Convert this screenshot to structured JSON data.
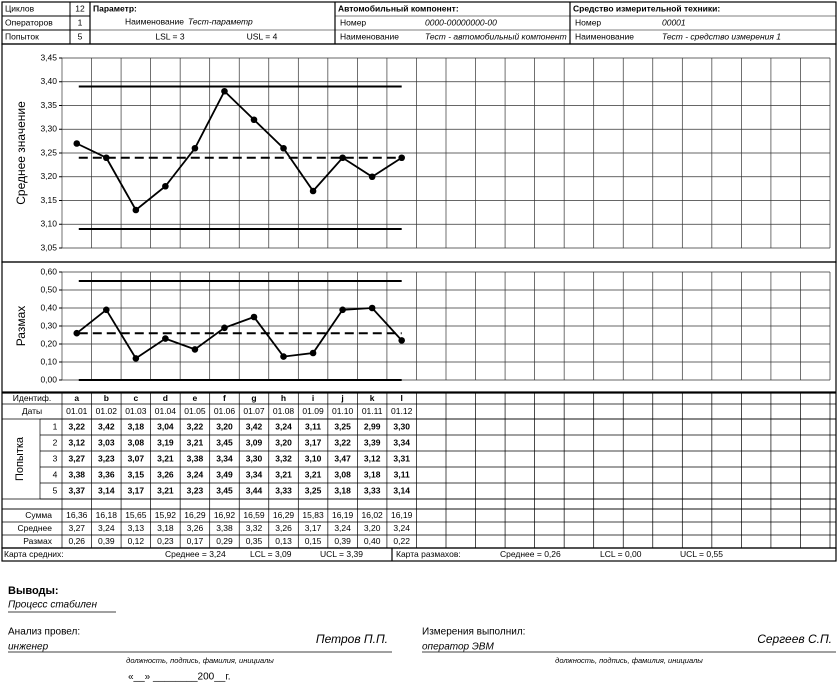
{
  "header": {
    "counts": [
      {
        "label": "Циклов",
        "value": "12"
      },
      {
        "label": "Операторов",
        "value": "1"
      },
      {
        "label": "Попыток",
        "value": "5"
      }
    ],
    "parameter": {
      "title": "Параметр:",
      "name_label": "Наименование",
      "name": "Тест-параметр",
      "lsl": "LSL = 3",
      "usl": "USL = 4"
    },
    "component": {
      "title": "Автомобильный компонент:",
      "number_label": "Номер",
      "number": "0000-00000000-00",
      "name_label": "Наименование",
      "name": "Тест - автомобильный компонент"
    },
    "instrument": {
      "title": "Средство измерительной техники:",
      "number_label": "Номер",
      "number": "00001",
      "name_label": "Наименование",
      "name": "Тест - средство измерения 1"
    }
  },
  "chart_data": [
    {
      "type": "line",
      "y_label": "Среднее значение",
      "color": "#000000",
      "grid": true,
      "values": [
        3.27,
        3.24,
        3.13,
        3.18,
        3.26,
        3.38,
        3.32,
        3.26,
        3.17,
        3.24,
        3.2,
        3.24
      ],
      "ucl": 3.39,
      "center": 3.24,
      "lcl": 3.09,
      "ylim": [
        3.05,
        3.45
      ],
      "yticks": [
        {
          "value": 3.05,
          "label": "3,05"
        },
        {
          "value": 3.1,
          "label": "3,10"
        },
        {
          "value": 3.15,
          "label": "3,15"
        },
        {
          "value": 3.2,
          "label": "3,20"
        },
        {
          "value": 3.25,
          "label": "3,25"
        },
        {
          "value": 3.3,
          "label": "3,30"
        },
        {
          "value": 3.35,
          "label": "3,35"
        },
        {
          "value": 3.4,
          "label": "3,40"
        },
        {
          "value": 3.45,
          "label": "3,45"
        }
      ]
    },
    {
      "type": "line",
      "y_label": "Размах",
      "color": "#000000",
      "grid": true,
      "values": [
        0.26,
        0.39,
        0.12,
        0.23,
        0.17,
        0.29,
        0.35,
        0.13,
        0.15,
        0.39,
        0.4,
        0.22
      ],
      "ucl": 0.55,
      "center": 0.26,
      "lcl": 0,
      "ylim": [
        0,
        0.6
      ],
      "yticks": [
        {
          "value": 0,
          "label": "0,00"
        },
        {
          "value": 0.1,
          "label": "0,10"
        },
        {
          "value": 0.2,
          "label": "0,20"
        },
        {
          "value": 0.3,
          "label": "0,30"
        },
        {
          "value": 0.4,
          "label": "0,40"
        },
        {
          "value": 0.5,
          "label": "0,50"
        },
        {
          "value": 0.6,
          "label": "0,60"
        }
      ]
    }
  ],
  "table": {
    "id_label": "Идентиф.",
    "dates_label": "Даты",
    "tries_label": "Попытка",
    "ids": [
      "a",
      "b",
      "c",
      "d",
      "e",
      "f",
      "g",
      "h",
      "i",
      "j",
      "k",
      "l"
    ],
    "dates": [
      "01.01",
      "01.02",
      "01.03",
      "01.04",
      "01.05",
      "01.06",
      "01.07",
      "01.08",
      "01.09",
      "01.10",
      "01.11",
      "01.12"
    ],
    "try_numbers": [
      "1",
      "2",
      "3",
      "4",
      "5"
    ],
    "tries": [
      [
        "3,22",
        "3,42",
        "3,18",
        "3,04",
        "3,22",
        "3,20",
        "3,42",
        "3,24",
        "3,11",
        "3,25",
        "2,99",
        "3,30"
      ],
      [
        "3,12",
        "3,03",
        "3,08",
        "3,19",
        "3,21",
        "3,45",
        "3,09",
        "3,20",
        "3,17",
        "3,22",
        "3,39",
        "3,34"
      ],
      [
        "3,27",
        "3,23",
        "3,07",
        "3,21",
        "3,38",
        "3,34",
        "3,30",
        "3,32",
        "3,10",
        "3,47",
        "3,12",
        "3,31"
      ],
      [
        "3,38",
        "3,36",
        "3,15",
        "3,26",
        "3,24",
        "3,49",
        "3,34",
        "3,21",
        "3,21",
        "3,08",
        "3,18",
        "3,11"
      ],
      [
        "3,37",
        "3,14",
        "3,17",
        "3,21",
        "3,23",
        "3,45",
        "3,44",
        "3,33",
        "3,25",
        "3,18",
        "3,33",
        "3,14"
      ]
    ],
    "sum_label": "Сумма",
    "sums": [
      "16,36",
      "16,18",
      "15,65",
      "15,92",
      "16,29",
      "16,92",
      "16,59",
      "16,29",
      "15,83",
      "16,19",
      "16,02",
      "16,19"
    ],
    "mean_label": "Среднее",
    "means": [
      "3,27",
      "3,24",
      "3,13",
      "3,18",
      "3,26",
      "3,38",
      "3,32",
      "3,26",
      "3,17",
      "3,24",
      "3,20",
      "3,24"
    ],
    "range_label": "Размах",
    "ranges": [
      "0,26",
      "0,39",
      "0,12",
      "0,23",
      "0,17",
      "0,29",
      "0,35",
      "0,13",
      "0,15",
      "0,39",
      "0,40",
      "0,22"
    ]
  },
  "summary": {
    "mean_chart": "Карта средних:",
    "mean_chart_stats": [
      "Среднее = 3,24",
      "LCL = 3,09",
      "UCL = 3,39"
    ],
    "range_chart": "Карта размахов:",
    "range_chart_stats": [
      "Среднее = 0,26",
      "LCL = 0,00",
      "UCL = 0,55"
    ]
  },
  "conclusion": {
    "title": "Выводы:",
    "text": "Процесс стабилен"
  },
  "signatures": [
    {
      "title": "Анализ провел:",
      "position": "инженер",
      "name": "Петров П.П.",
      "caption": "должность, подпись, фамилия, инициалы"
    },
    {
      "title": "Измерения выполнил:",
      "position": "оператор ЭВМ",
      "name": "Сергеев С.П.",
      "caption": "должность, подпись, фамилия, инициалы"
    }
  ],
  "date_line": "«__» ________200__г."
}
